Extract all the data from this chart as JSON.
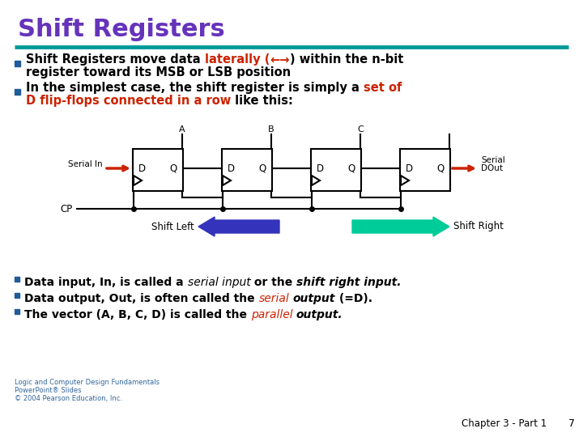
{
  "title": "Shift Registers",
  "title_color": "#6633BB",
  "bg_color": "#FFFFFF",
  "teal_line_color": "#009999",
  "bullet_color": "#1F5C99",
  "chapter_text": "Chapter 3 - Part 1",
  "page_num": "7",
  "footer_left_lines": [
    "Logic and Computer Design Fundamentals",
    "PowerPoint® Slides",
    "© 2004 Pearson Education, Inc."
  ],
  "shift_left_color": "#3333BB",
  "shift_right_color": "#00CC99",
  "red_arrow_color": "#CC2200",
  "circuit_line_color": "#000000"
}
